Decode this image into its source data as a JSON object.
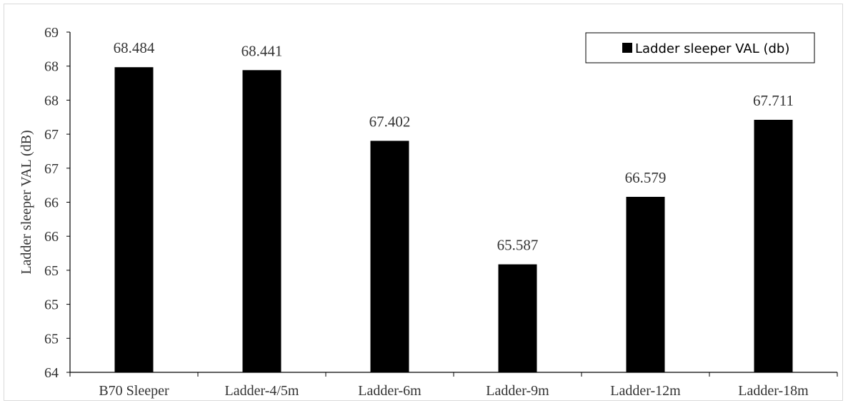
{
  "chart_data": {
    "type": "bar",
    "categories": [
      "B70 Sleeper",
      "Ladder-4/5m",
      "Ladder-6m",
      "Ladder-9m",
      "Ladder-12m",
      "Ladder-18m"
    ],
    "values": [
      68.484,
      68.441,
      67.402,
      65.587,
      66.579,
      67.711
    ],
    "data_labels": [
      "68.484",
      "68.441",
      "67.402",
      "65.587",
      "66.579",
      "67.711"
    ],
    "series": [
      {
        "name": "Ladder sleeper VAL (db)",
        "values": [
          68.484,
          68.441,
          67.402,
          65.587,
          66.579,
          67.711
        ],
        "color": "#000000"
      }
    ],
    "ylabel": "Ladder sleeper VAL (dB)",
    "ylim": [
      64,
      69
    ],
    "yticks": [
      64,
      64.5,
      65,
      65.5,
      66,
      66.5,
      67,
      67.5,
      68,
      68.5,
      69
    ],
    "ytick_labels": [
      "64",
      "65",
      "65",
      "65",
      "66",
      "66",
      "67",
      "67",
      "68",
      "68",
      "69"
    ],
    "grid": false,
    "legend_position": "top-right",
    "bar_color": "#000000"
  }
}
